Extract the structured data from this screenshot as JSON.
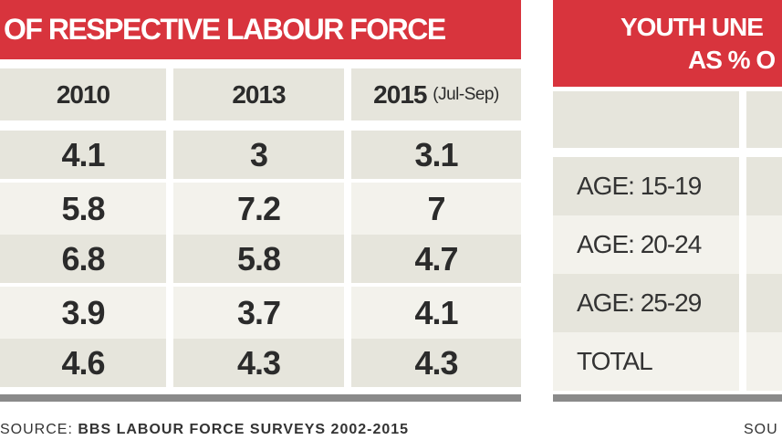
{
  "chart_data": [
    {
      "type": "table",
      "title": "OF RESPECTIVE LABOUR FORCE",
      "columns": [
        "2010",
        "2013",
        "2015"
      ],
      "column_note": "(Jul-Sep)",
      "rows": [
        [
          4.1,
          3,
          3.1
        ],
        [
          5.8,
          7.2,
          7
        ],
        [
          6.8,
          5.8,
          4.7
        ],
        [
          3.9,
          3.7,
          4.1
        ],
        [
          4.6,
          4.3,
          4.3
        ]
      ],
      "source_prefix": "SOURCE:",
      "source": "BBS LABOUR FORCE SURVEYS 2002-2015"
    },
    {
      "type": "table",
      "title_line1": "YOUTH UNE",
      "title_line2": "AS % O",
      "row_labels": [
        "AGE: 15-19",
        "AGE: 20-24",
        "AGE: 25-29",
        "TOTAL"
      ],
      "source": "SOU"
    }
  ],
  "colors": {
    "header_red": "#d8343d",
    "cell_dark": "#e6e5dc",
    "cell_light": "#f3f2ec"
  }
}
